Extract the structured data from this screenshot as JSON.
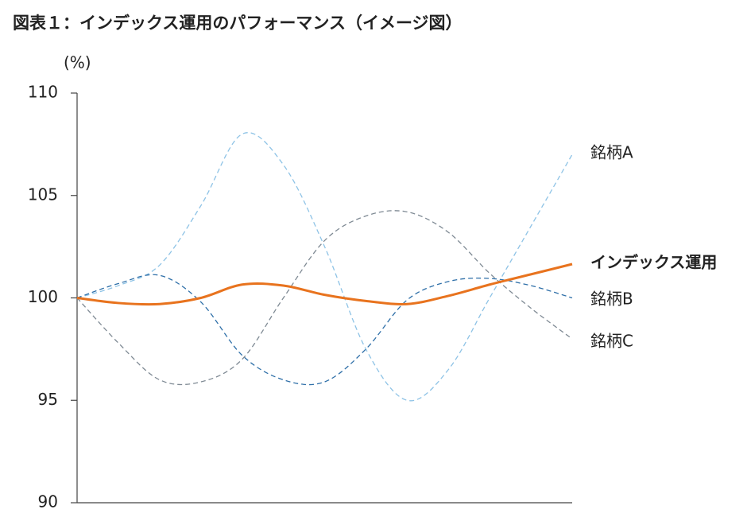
{
  "chart_data": {
    "type": "line",
    "title": "図表１：インデックス運用のパフォーマンス（イメージ図）",
    "y_label": "(%)",
    "categories": [
      null,
      null,
      null,
      null,
      null,
      null,
      null,
      null,
      null,
      null,
      null,
      null,
      null
    ],
    "ylim": [
      90,
      110
    ],
    "yticks": [
      90,
      95,
      100,
      105,
      110
    ],
    "grid": false,
    "series": [
      {
        "name": "銘柄A",
        "color": "#8ec3e6",
        "dashed": true,
        "values": [
          100,
          100.6,
          101.6,
          104.5,
          108.0,
          106.5,
          102.5,
          97.5,
          95.0,
          96.5,
          100.0,
          103.5,
          107.0
        ]
      },
      {
        "name": "銘柄B",
        "color": "#2e6fa8",
        "dashed": true,
        "values": [
          100,
          100.7,
          101.1,
          99.8,
          97.2,
          96.0,
          95.9,
          97.5,
          99.9,
          100.8,
          100.95,
          100.6,
          100.0
        ]
      },
      {
        "name": "銘柄C",
        "color": "#7f8a94",
        "dashed": true,
        "values": [
          100,
          97.8,
          96.0,
          95.9,
          97.0,
          100.0,
          102.8,
          104.0,
          104.2,
          103.2,
          101.2,
          99.5,
          98.0
        ]
      },
      {
        "name": "インデックス運用",
        "color": "#e8731e",
        "dashed": false,
        "values": [
          100,
          99.75,
          99.7,
          100.0,
          100.65,
          100.6,
          100.15,
          99.85,
          99.7,
          100.1,
          100.65,
          101.15,
          101.65
        ]
      }
    ]
  }
}
